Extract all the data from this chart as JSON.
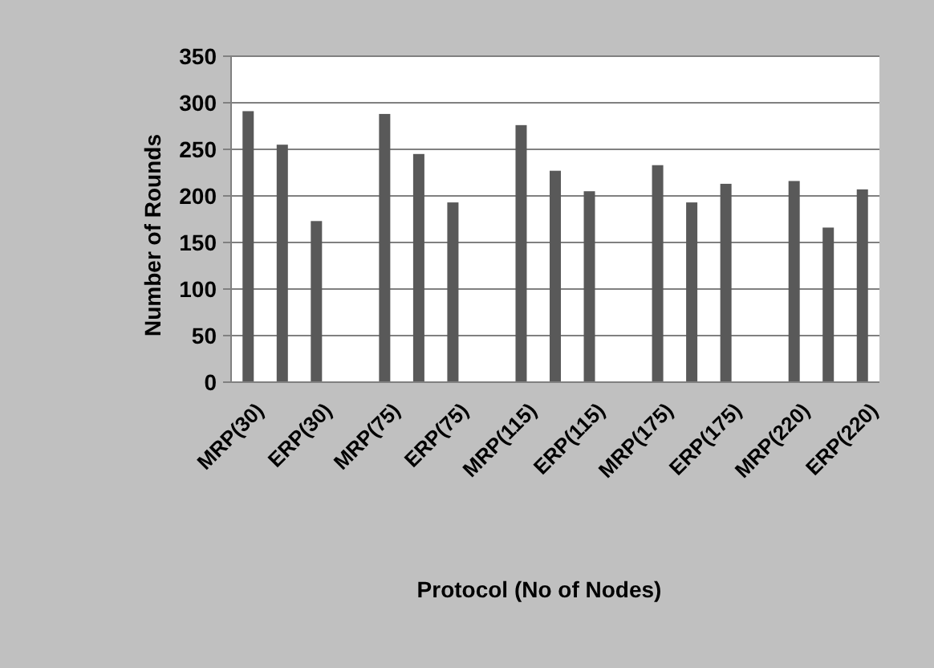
{
  "chart_data": {
    "type": "bar",
    "xlabel": "Protocol (No of Nodes)",
    "ylabel": "Number of Rounds",
    "categories": [
      "MRP(30)",
      null,
      "ERP(30)",
      null,
      "MRP(75)",
      null,
      "ERP(75)",
      null,
      "MRP(115)",
      null,
      "ERP(115)",
      null,
      "MRP(175)",
      null,
      "ERP(175)",
      null,
      "MRP(220)",
      null,
      "ERP(220)"
    ],
    "values": [
      291,
      255,
      173,
      null,
      288,
      245,
      193,
      null,
      276,
      227,
      205,
      null,
      233,
      193,
      213,
      null,
      216,
      166,
      207
    ],
    "color": "#595959",
    "ylim": [
      0,
      350
    ],
    "yticks": [
      0,
      50,
      100,
      150,
      200,
      250,
      300,
      350
    ],
    "grid": "y"
  }
}
